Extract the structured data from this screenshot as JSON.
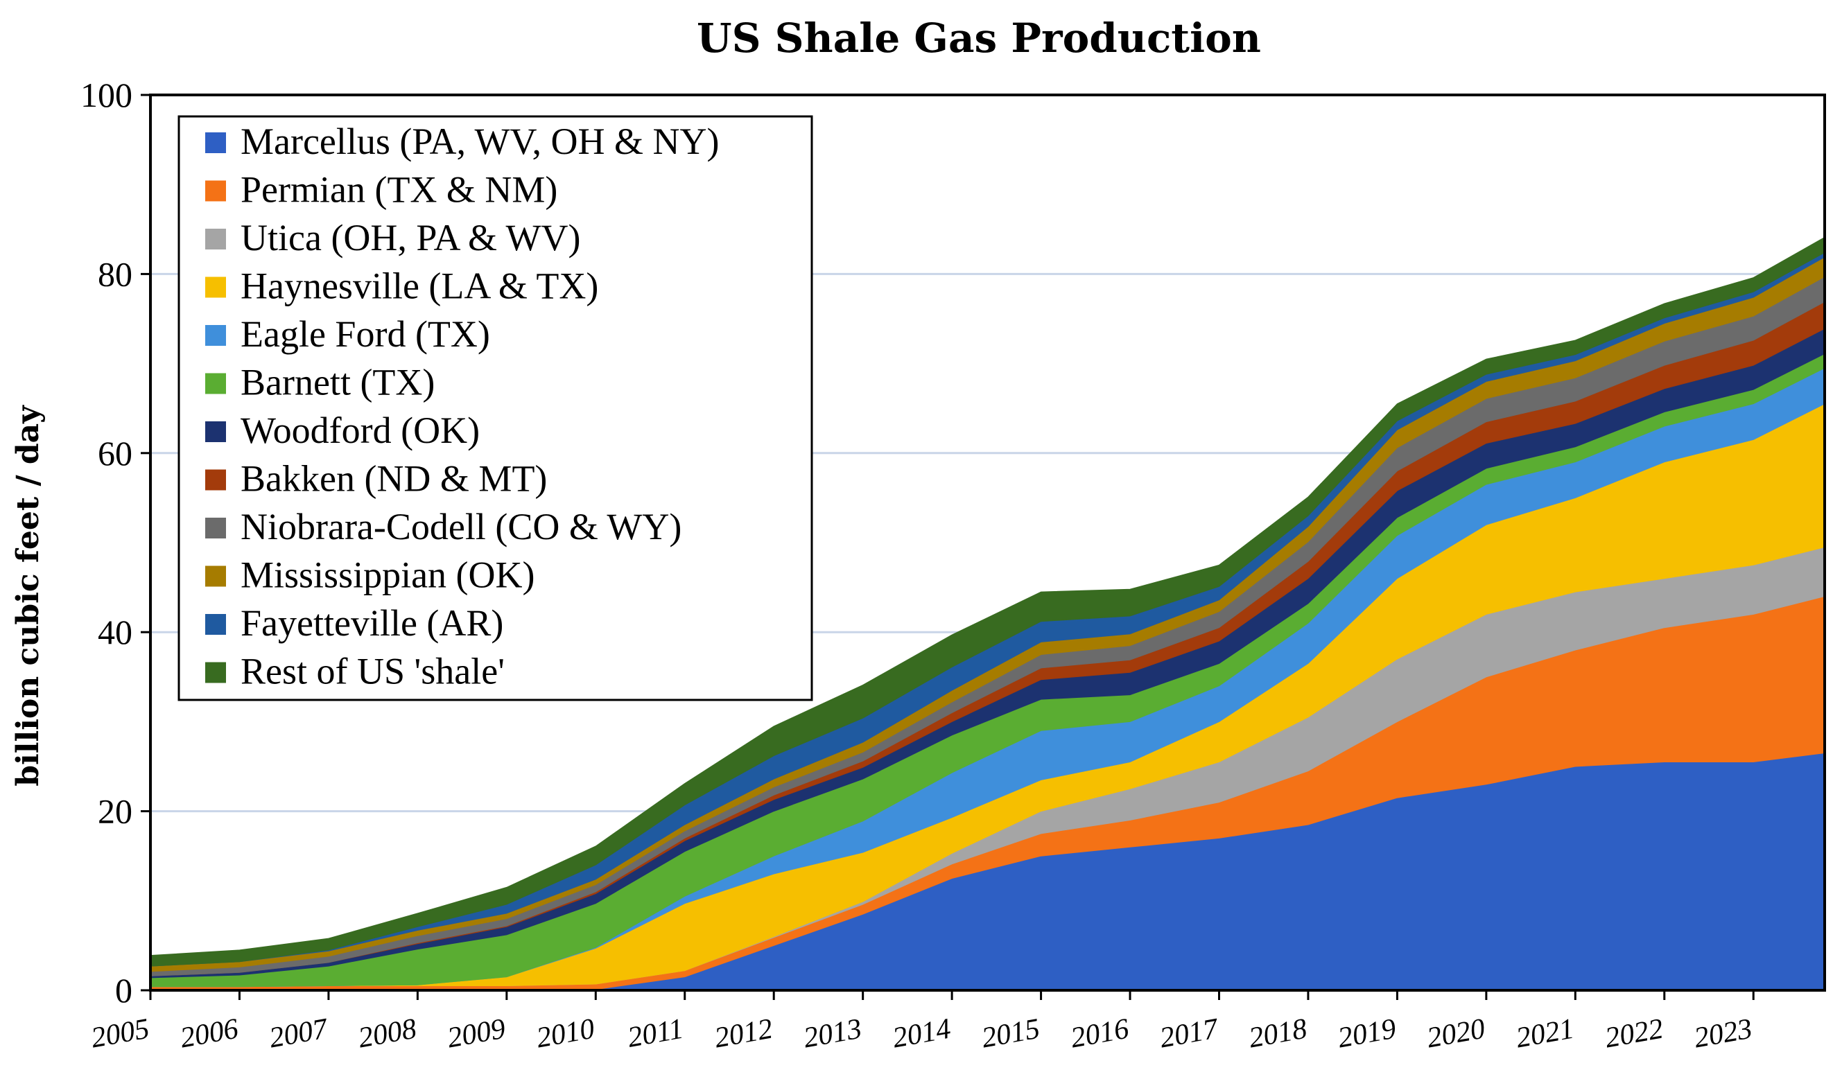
{
  "chart_data": {
    "type": "area",
    "stacked": true,
    "title": "US Shale Gas Production",
    "xlabel": "",
    "ylabel": "billion cubic feet / day",
    "x": [
      2005,
      2006,
      2007,
      2008,
      2009,
      2010,
      2011,
      2012,
      2013,
      2014,
      2015,
      2016,
      2017,
      2018,
      2019,
      2020,
      2021,
      2022,
      2023,
      2023.8
    ],
    "xlim": [
      2005,
      2023.8
    ],
    "ylim": [
      0,
      100
    ],
    "yticks": [
      0,
      20,
      40,
      60,
      80,
      100
    ],
    "xtick_labels": [
      "2005",
      "2006",
      "2007",
      "2008",
      "2009",
      "2010",
      "2011",
      "2012",
      "2013",
      "2014",
      "2015",
      "2016",
      "2017",
      "2018",
      "2019",
      "2020",
      "2021",
      "2022",
      "2023"
    ],
    "grid": true,
    "legend_position": "top-left",
    "series": [
      {
        "name": "Marcellus (PA, WV, OH & NY)",
        "color": "#2e5fc4",
        "values": [
          0,
          0,
          0,
          0,
          0,
          0.1,
          1.5,
          5,
          8.5,
          12.5,
          15,
          16,
          17,
          18.5,
          21.5,
          23,
          25,
          25.5,
          25.5,
          26.5
        ]
      },
      {
        "name": "Permian (TX & NM)",
        "color": "#f47216",
        "values": [
          0.4,
          0.4,
          0.5,
          0.5,
          0.5,
          0.6,
          0.7,
          0.9,
          1.1,
          1.6,
          2.5,
          3,
          4,
          6,
          8.5,
          12,
          13,
          15,
          16.5,
          17.5
        ]
      },
      {
        "name": "Utica (OH, PA & WV)",
        "color": "#a5a5a5",
        "values": [
          0,
          0,
          0,
          0,
          0,
          0,
          0,
          0.1,
          0.3,
          1.2,
          2.5,
          3.5,
          4.5,
          6,
          7,
          7,
          6.5,
          5.5,
          5.5,
          5.5
        ]
      },
      {
        "name": "Haynesville (LA & TX)",
        "color": "#f6bf00",
        "values": [
          0,
          0,
          0,
          0.1,
          1,
          4,
          7.5,
          7,
          5.5,
          4,
          3.5,
          3,
          4.5,
          6,
          9,
          10,
          10.5,
          13,
          14,
          16
        ]
      },
      {
        "name": "Eagle Ford (TX)",
        "color": "#3f8fdb",
        "values": [
          0,
          0,
          0,
          0,
          0,
          0.1,
          0.8,
          2,
          3.5,
          5,
          5.5,
          4.5,
          4,
          4.5,
          4.8,
          4.5,
          4,
          4,
          4,
          4
        ]
      },
      {
        "name": "Barnett (TX)",
        "color": "#5aad32",
        "values": [
          1,
          1.3,
          2.2,
          4,
          4.7,
          4.9,
          5,
          5,
          4.7,
          4.2,
          3.5,
          3,
          2.5,
          2.2,
          2,
          1.8,
          1.7,
          1.6,
          1.6,
          1.6
        ]
      },
      {
        "name": "Woodford (OK)",
        "color": "#1c3270",
        "values": [
          0.2,
          0.3,
          0.4,
          0.6,
          0.9,
          1.1,
          1.2,
          1.3,
          1.3,
          1.5,
          2.2,
          2.5,
          2.5,
          2.8,
          3,
          2.8,
          2.6,
          2.6,
          2.7,
          2.8
        ]
      },
      {
        "name": "Bakken (ND & MT)",
        "color": "#a33b0b",
        "values": [
          0,
          0,
          0,
          0.1,
          0.1,
          0.2,
          0.3,
          0.5,
          0.7,
          1,
          1.3,
          1.4,
          1.5,
          1.9,
          2.2,
          2.4,
          2.5,
          2.6,
          2.8,
          3
        ]
      },
      {
        "name": "Niobrara-Codell (CO & WY)",
        "color": "#6b6b6b",
        "values": [
          0.5,
          0.6,
          0.7,
          0.8,
          0.8,
          0.8,
          0.8,
          0.9,
          1,
          1.2,
          1.5,
          1.6,
          1.8,
          2.2,
          2.6,
          2.6,
          2.6,
          2.7,
          2.7,
          2.8
        ]
      },
      {
        "name": "Mississippian (OK)",
        "color": "#a67c00",
        "values": [
          0.6,
          0.6,
          0.6,
          0.6,
          0.6,
          0.6,
          0.7,
          0.9,
          1.1,
          1.3,
          1.4,
          1.3,
          1.3,
          1.7,
          2,
          1.9,
          1.9,
          2,
          2.1,
          2.2
        ]
      },
      {
        "name": "Fayetteville (AR)",
        "color": "#1f5aa0",
        "values": [
          0,
          0,
          0.1,
          0.4,
          1,
          1.6,
          2.2,
          2.6,
          2.7,
          2.6,
          2.3,
          2,
          1.5,
          1.2,
          1,
          0.8,
          0.7,
          0.6,
          0.6,
          0.5
        ]
      },
      {
        "name": "Rest of US 'shale'",
        "color": "#386b20",
        "values": [
          1.2,
          1.3,
          1.3,
          1.5,
          1.9,
          2.1,
          2.4,
          3.3,
          3.7,
          3.6,
          3.3,
          3,
          2.4,
          2.1,
          1.9,
          1.7,
          1.6,
          1.6,
          1.6,
          1.7
        ]
      }
    ]
  }
}
